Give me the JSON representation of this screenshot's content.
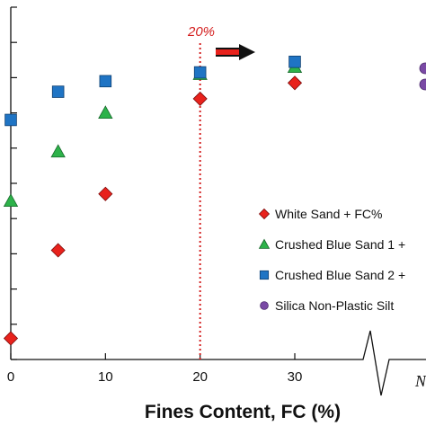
{
  "chart_data": {
    "type": "scatter",
    "title": "",
    "xlabel": "Fines Content, FC (%)",
    "ylabel": "",
    "xlim": [
      0,
      40
    ],
    "ylim": [
      0,
      10
    ],
    "x_ticks": [
      0,
      10,
      20,
      30
    ],
    "y_ticks": [
      0,
      1,
      2,
      3,
      4,
      5,
      6,
      7,
      8,
      9,
      10
    ],
    "grid": false,
    "legend_position": "lower-right",
    "series": [
      {
        "name": "White Sand + FC%",
        "marker": "diamond",
        "color": "#e8221c",
        "x": [
          0,
          5,
          10,
          20,
          30
        ],
        "y": [
          0.6,
          3.1,
          4.7,
          7.4,
          7.85
        ]
      },
      {
        "name": "Crushed Blue Sand 1 +",
        "marker": "triangle",
        "color": "#2db24a",
        "x": [
          0,
          5,
          10,
          20,
          30
        ],
        "y": [
          4.5,
          5.9,
          7.0,
          8.1,
          8.3
        ]
      },
      {
        "name": "Crushed Blue Sand 2 +",
        "marker": "square",
        "color": "#1f74c4",
        "x": [
          0,
          5,
          10,
          20,
          30
        ],
        "y": [
          6.8,
          7.6,
          7.9,
          8.15,
          8.45
        ]
      },
      {
        "name": "Silica Non-Plastic Silt",
        "marker": "circle",
        "color": "#7a4aa5",
        "x": [],
        "y": []
      }
    ],
    "annotations": [
      {
        "text": "20%",
        "color": "#d42020"
      },
      {
        "text": "N"
      }
    ],
    "reference_line": {
      "x": 20,
      "color": "#d42020",
      "style": "dotted"
    }
  }
}
